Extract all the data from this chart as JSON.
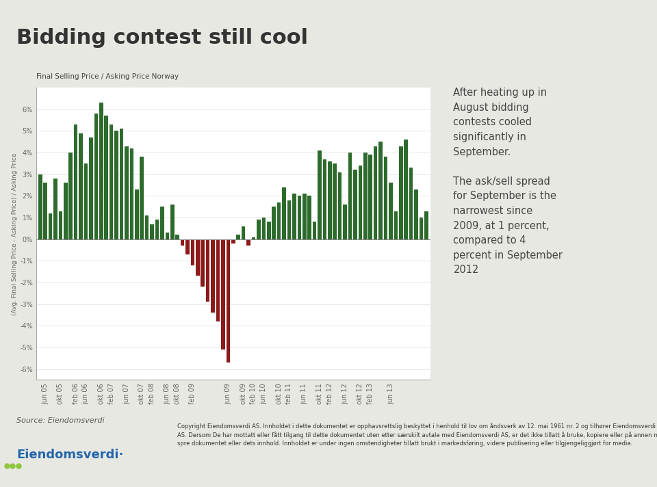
{
  "title": "Bidding contest still cool",
  "subtitle": "Final Selling Price / Asking Price Norway",
  "ylabel": "(Avg. Final Selling Price - Asking Price) / Asking Price",
  "bg_color": "#e8e8e3",
  "plot_bg": "#ffffff",
  "title_bar_color": "#8dc63f",
  "green_color": "#2d6b2d",
  "red_color": "#8b1a1a",
  "annotation_line1": "After heating up in",
  "annotation_line2": "August bidding",
  "annotation_line3": "contests cooled",
  "annotation_line4": "significantly in",
  "annotation_line5": "September.",
  "annotation_line6": "",
  "annotation_line7": "The ask/sell spread",
  "annotation_line8": "for September is the",
  "annotation_line9": "narrowest since",
  "annotation_line10": "2009, at 1 percent,",
  "annotation_line11": "compared to 4",
  "annotation_line12": "percent in September",
  "annotation_line13": "2012",
  "source_text": "Source: Eiendomsverdi",
  "copyright_text": "Copyright Eiendomsverdi AS. Innholdet i dette dokumentet er opphavsrettslig beskyttet i henhold til lov om åndsverk av 12. mai 1961 nr. 2 og tilhører Eiendomsverdi\nAS. Dersom De har mottatt eller fått tilgang til dette dokumentet uten etter særskilt avtale med Eiendomsverdi AS, er det ikke tillatt å bruke, kopiere eller på annen måte\nspre dokumentet eller dets innhold. Innholdet er under ingen omstendigheter tillatt brukt i markedsføring, videre publisering eller tilgjengeliggjørt for media.",
  "ylim": [
    -6.5,
    7.0
  ],
  "yticks": [
    -6,
    -5,
    -4,
    -3,
    -2,
    -1,
    0,
    1,
    2,
    3,
    4,
    5,
    6
  ],
  "bar_values": [
    3.0,
    2.6,
    1.2,
    2.8,
    1.3,
    2.6,
    4.0,
    5.3,
    4.9,
    3.5,
    4.7,
    5.8,
    6.3,
    5.7,
    5.3,
    5.0,
    5.1,
    4.3,
    4.2,
    2.3,
    3.8,
    1.1,
    0.7,
    0.9,
    1.5,
    0.3,
    1.6,
    0.2,
    -0.3,
    -0.7,
    -1.2,
    -1.7,
    -2.2,
    -2.9,
    -3.4,
    -3.8,
    -5.1,
    -5.7,
    -0.2,
    0.2,
    0.6,
    -0.3,
    0.1,
    0.9,
    1.0,
    0.8,
    1.5,
    1.7,
    2.4,
    1.8,
    2.1,
    2.0,
    2.1,
    2.0,
    0.8,
    4.1,
    3.7,
    3.6,
    3.5,
    3.1,
    1.6,
    4.0,
    3.2,
    3.4,
    4.0,
    3.9,
    4.3,
    4.5,
    3.8,
    2.6,
    1.3,
    4.3,
    4.6,
    3.3,
    2.3,
    1.0,
    1.3
  ],
  "xtick_labels": [
    "jun 05",
    "okt 05",
    "feb 06",
    "jun 06",
    "okt 06",
    "feb 07",
    "jun 07",
    "okt 07",
    "feb 08",
    "jun 08",
    "okt 08",
    "feb 09",
    "jun 09",
    "okt 09",
    "feb 10",
    "jun 10",
    "okt 10",
    "feb 11",
    "jun 11",
    "okt 11",
    "feb 12",
    "jun 12",
    "okt 12",
    "feb 13",
    "jun 13"
  ],
  "xtick_positions": [
    1,
    4,
    7,
    9,
    12,
    14,
    17,
    20,
    22,
    25,
    27,
    30,
    37,
    40,
    42,
    44,
    47,
    49,
    52,
    55,
    57,
    60,
    63,
    65,
    69
  ]
}
